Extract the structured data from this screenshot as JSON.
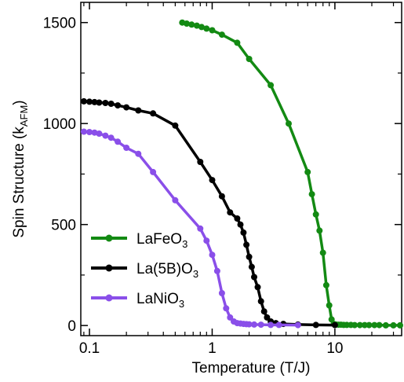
{
  "chart_data": {
    "type": "line",
    "xscale": "log",
    "xlim": [
      0.085,
      35
    ],
    "ylim": [
      -50,
      1600
    ],
    "xlabel": "Temperature (T/J)",
    "ylabel": "Spin Structure (k",
    "ylabel_sub": "AFM",
    "ylabel_end": ")",
    "xticks": [
      0.1,
      1,
      10
    ],
    "xtick_labels": [
      "0.1",
      "1",
      "10"
    ],
    "yticks": [
      0,
      500,
      1000,
      1500
    ],
    "ytick_labels": [
      "0",
      "500",
      "1000",
      "1500"
    ],
    "grid": false,
    "legend_position": "bottom-left",
    "series": [
      {
        "name": "LaFeO",
        "name_sub": "3",
        "color": "#138a13",
        "x": [
          0.57,
          0.62,
          0.68,
          0.75,
          0.82,
          0.9,
          1.0,
          1.2,
          1.6,
          2.0,
          3.0,
          4.2,
          6.0,
          6.5,
          7.0,
          7.5,
          8.0,
          8.5,
          9.0,
          9.4,
          9.8,
          10.2,
          10.7,
          11.2,
          11.8,
          12.5,
          13.5,
          14.5,
          16.0,
          17.5,
          19.0,
          21.0,
          23.0,
          26.0,
          30.0,
          34.0
        ],
        "y": [
          1500,
          1495,
          1490,
          1485,
          1478,
          1470,
          1462,
          1440,
          1400,
          1320,
          1190,
          1000,
          760,
          650,
          550,
          470,
          360,
          200,
          100,
          30,
          8,
          5,
          4,
          4,
          3,
          3,
          3,
          2,
          2,
          2,
          2,
          2,
          2,
          1,
          1,
          1
        ]
      },
      {
        "name": "La(5B)O",
        "name_sub": "3",
        "color": "#000000",
        "x": [
          0.09,
          0.1,
          0.11,
          0.12,
          0.135,
          0.15,
          0.17,
          0.2,
          0.25,
          0.33,
          0.5,
          0.8,
          1.0,
          1.2,
          1.4,
          1.6,
          1.7,
          1.8,
          1.9,
          2.0,
          2.1,
          2.2,
          2.35,
          2.5,
          2.65,
          2.8,
          3.0,
          3.3,
          3.8,
          5.0,
          7.0,
          10.0
        ],
        "y": [
          1110,
          1108,
          1106,
          1104,
          1102,
          1098,
          1090,
          1080,
          1065,
          1050,
          990,
          810,
          720,
          640,
          560,
          530,
          500,
          460,
          400,
          340,
          290,
          240,
          190,
          120,
          70,
          40,
          20,
          12,
          8,
          5,
          3,
          2
        ]
      },
      {
        "name": "LaNiO",
        "name_sub": "3",
        "color": "#8a4fe9",
        "x": [
          0.09,
          0.1,
          0.11,
          0.12,
          0.135,
          0.15,
          0.17,
          0.2,
          0.25,
          0.33,
          0.5,
          0.8,
          0.9,
          1.0,
          1.1,
          1.2,
          1.3,
          1.4,
          1.5,
          1.6,
          1.7,
          1.8,
          1.9,
          2.0,
          2.2,
          2.5,
          3.0,
          3.5,
          5.0
        ],
        "y": [
          960,
          958,
          955,
          950,
          940,
          930,
          910,
          880,
          850,
          760,
          620,
          480,
          420,
          350,
          270,
          160,
          85,
          40,
          20,
          12,
          10,
          8,
          7,
          6,
          5,
          4,
          3,
          3,
          2
        ]
      }
    ]
  }
}
